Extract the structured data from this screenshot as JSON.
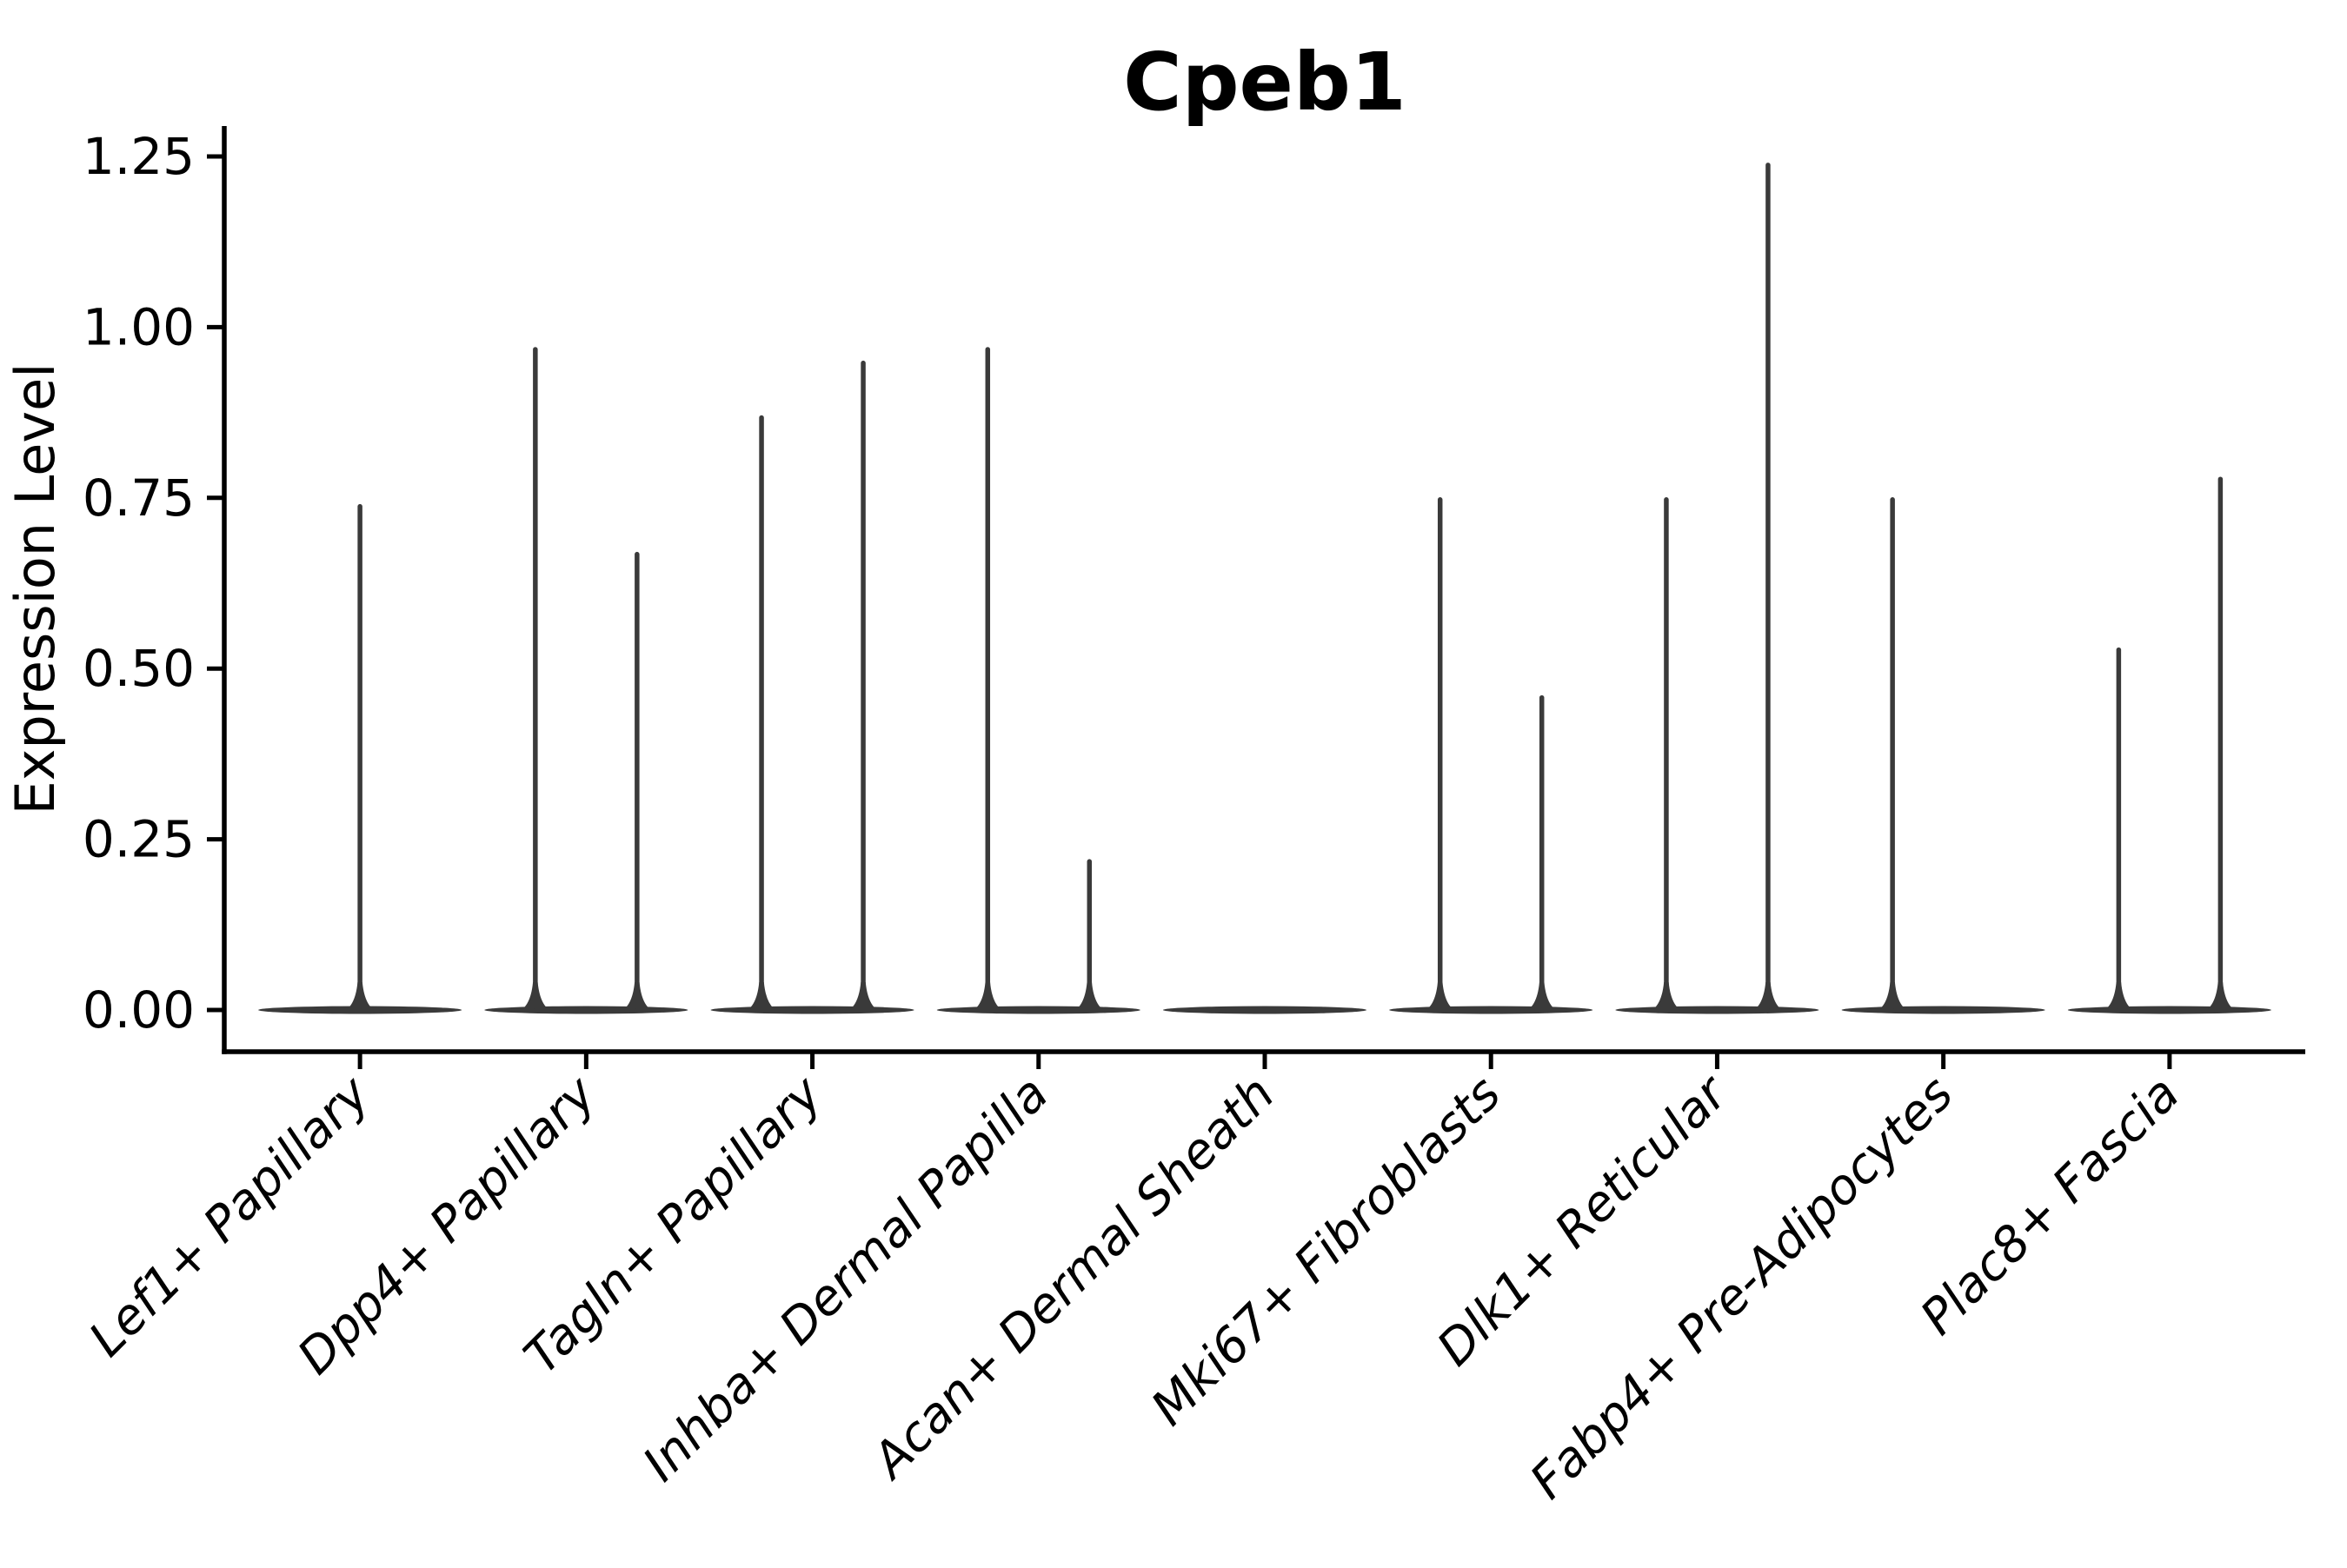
{
  "title": "Cpeb1",
  "chart_data": {
    "type": "violin",
    "title": "Cpeb1",
    "xlabel": "",
    "ylabel": "Expression Level",
    "ylim": [
      0,
      1.25
    ],
    "yticks": [
      0.0,
      0.25,
      0.5,
      0.75,
      1.0,
      1.25
    ],
    "ytick_labels": [
      "0.00",
      "0.25",
      "0.50",
      "0.75",
      "1.00",
      "1.25"
    ],
    "grid": false,
    "legend": "none",
    "x_label_rotation_deg": 45,
    "categories": [
      "Lef1+ Papillary",
      "Dpp4+ Papillary",
      "Tagln+ Papillary",
      "Inhba+ Dermal Papilla",
      "Acan+ Dermal Sheath",
      "Mki67+ Fibroblasts",
      "Dlk1+ Reticular",
      "Fabp4+ Pre-Adipocytes",
      "Plac8+ Fascia"
    ],
    "violins": [
      {
        "category": "Lef1+ Papillary",
        "baseline_value": 0,
        "spikes": [
          {
            "position": "center",
            "max": 0.74
          }
        ]
      },
      {
        "category": "Dpp4+ Papillary",
        "baseline_value": 0,
        "spikes": [
          {
            "position": "left",
            "max": 0.97
          },
          {
            "position": "right",
            "max": 0.67
          }
        ]
      },
      {
        "category": "Tagln+ Papillary",
        "baseline_value": 0,
        "spikes": [
          {
            "position": "left",
            "max": 0.87
          },
          {
            "position": "right",
            "max": 0.95
          }
        ]
      },
      {
        "category": "Inhba+ Dermal Papilla",
        "baseline_value": 0,
        "spikes": [
          {
            "position": "left",
            "max": 0.97
          },
          {
            "position": "right",
            "max": 0.22
          }
        ]
      },
      {
        "category": "Acan+ Dermal Sheath",
        "baseline_value": 0,
        "spikes": []
      },
      {
        "category": "Mki67+ Fibroblasts",
        "baseline_value": 0,
        "spikes": [
          {
            "position": "left",
            "max": 0.75
          },
          {
            "position": "right",
            "max": 0.46
          }
        ]
      },
      {
        "category": "Dlk1+ Reticular",
        "baseline_value": 0,
        "spikes": [
          {
            "position": "left",
            "max": 0.75
          },
          {
            "position": "right",
            "max": 1.24
          }
        ]
      },
      {
        "category": "Fabp4+ Pre-Adipocytes",
        "baseline_value": 0,
        "spikes": [
          {
            "position": "left",
            "max": 0.75
          }
        ]
      },
      {
        "category": "Plac8+ Fascia",
        "baseline_value": 0,
        "spikes": [
          {
            "position": "left",
            "max": 0.53
          },
          {
            "position": "right",
            "max": 0.78
          }
        ]
      }
    ],
    "colors": {
      "violin": "#3a3a3a",
      "axis": "#000000",
      "text": "#000000",
      "background": "#ffffff"
    }
  }
}
